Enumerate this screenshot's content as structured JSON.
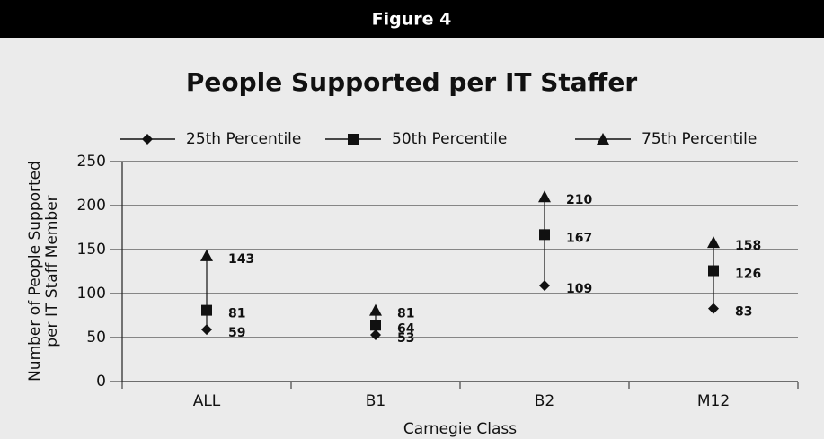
{
  "chart_data": {
    "type": "dot-range",
    "figure_label": "Figure 4",
    "title": "People Supported per IT Staffer",
    "x_label": "Carnegie Class",
    "y_label": [
      "Number of People Supported",
      "per IT Staff Member"
    ],
    "categories": [
      "ALL",
      "B1",
      "B2",
      "M12"
    ],
    "series": [
      {
        "name": "25th Percentile",
        "color": "#111111",
        "marker": "diamond",
        "values": [
          59,
          53,
          109,
          83
        ]
      },
      {
        "name": "50th Percentile",
        "color": "#111111",
        "marker": "square",
        "values": [
          81,
          64,
          167,
          126
        ]
      },
      {
        "name": "75th Percentile",
        "color": "#111111",
        "marker": "triangle",
        "values": [
          143,
          81,
          210,
          158
        ]
      }
    ],
    "ylim": [
      0,
      250
    ],
    "yticks": [
      0,
      50,
      100,
      150,
      200,
      250
    ],
    "grid": true,
    "legend": "top"
  }
}
